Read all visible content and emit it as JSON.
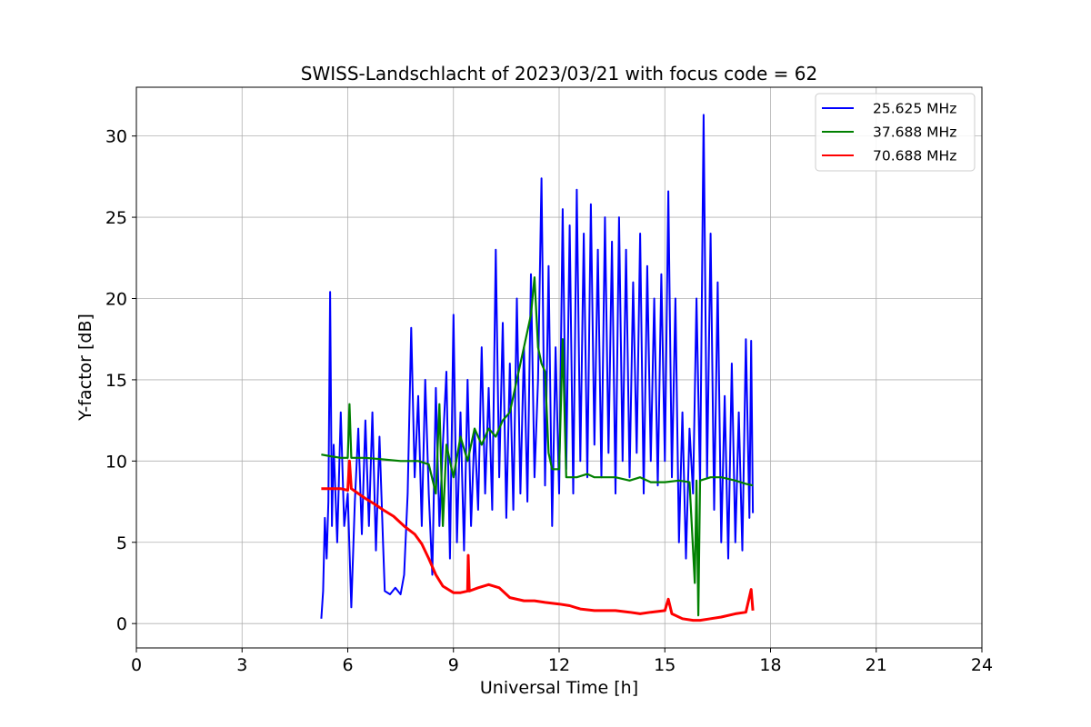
{
  "chart_data": {
    "type": "line",
    "title": "SWISS-Landschlacht of 2023/03/21 with focus code = 62",
    "xlabel": "Universal Time [h]",
    "ylabel": "Y-factor [dB]",
    "xlim": [
      0,
      24
    ],
    "ylim": [
      -1.5,
      33
    ],
    "xticks": [
      0,
      3,
      6,
      9,
      12,
      15,
      18,
      21,
      24
    ],
    "yticks": [
      0,
      5,
      10,
      15,
      20,
      25,
      30
    ],
    "grid": true,
    "legend_position": "top-right",
    "series": [
      {
        "name": "25.625 MHz",
        "color": "#0000ff",
        "points": [
          [
            5.25,
            0.3
          ],
          [
            5.3,
            2.0
          ],
          [
            5.35,
            6.5
          ],
          [
            5.4,
            4.0
          ],
          [
            5.45,
            7.5
          ],
          [
            5.5,
            20.4
          ],
          [
            5.55,
            6.0
          ],
          [
            5.6,
            11.0
          ],
          [
            5.7,
            5.0
          ],
          [
            5.8,
            13.0
          ],
          [
            5.9,
            6.0
          ],
          [
            6.0,
            8.0
          ],
          [
            6.1,
            1.0
          ],
          [
            6.2,
            7.5
          ],
          [
            6.3,
            12.0
          ],
          [
            6.4,
            5.5
          ],
          [
            6.5,
            12.5
          ],
          [
            6.6,
            6.0
          ],
          [
            6.7,
            13.0
          ],
          [
            6.8,
            4.5
          ],
          [
            6.9,
            11.5
          ],
          [
            7.0,
            5.0
          ],
          [
            7.05,
            2.0
          ],
          [
            7.2,
            1.8
          ],
          [
            7.35,
            2.2
          ],
          [
            7.5,
            1.8
          ],
          [
            7.6,
            3.0
          ],
          [
            7.7,
            8.0
          ],
          [
            7.8,
            18.2
          ],
          [
            7.9,
            9.0
          ],
          [
            8.0,
            14.0
          ],
          [
            8.1,
            6.0
          ],
          [
            8.2,
            15.0
          ],
          [
            8.3,
            8.0
          ],
          [
            8.4,
            3.0
          ],
          [
            8.5,
            14.5
          ],
          [
            8.6,
            6.0
          ],
          [
            8.7,
            11.0
          ],
          [
            8.8,
            15.5
          ],
          [
            8.9,
            4.0
          ],
          [
            9.0,
            19.0
          ],
          [
            9.1,
            5.0
          ],
          [
            9.2,
            13.0
          ],
          [
            9.3,
            4.5
          ],
          [
            9.4,
            15.0
          ],
          [
            9.5,
            6.0
          ],
          [
            9.6,
            12.0
          ],
          [
            9.7,
            7.0
          ],
          [
            9.8,
            17.0
          ],
          [
            9.9,
            8.0
          ],
          [
            10.0,
            14.5
          ],
          [
            10.1,
            7.0
          ],
          [
            10.2,
            23.0
          ],
          [
            10.3,
            9.0
          ],
          [
            10.4,
            18.5
          ],
          [
            10.5,
            6.5
          ],
          [
            10.6,
            16.0
          ],
          [
            10.7,
            7.0
          ],
          [
            10.8,
            20.0
          ],
          [
            10.9,
            8.0
          ],
          [
            11.0,
            17.0
          ],
          [
            11.1,
            7.5
          ],
          [
            11.2,
            21.5
          ],
          [
            11.3,
            9.0
          ],
          [
            11.4,
            15.0
          ],
          [
            11.5,
            27.4
          ],
          [
            11.6,
            8.5
          ],
          [
            11.7,
            22.0
          ],
          [
            11.8,
            6.0
          ],
          [
            11.9,
            17.0
          ],
          [
            12.0,
            8.0
          ],
          [
            12.1,
            25.5
          ],
          [
            12.2,
            9.5
          ],
          [
            12.3,
            24.5
          ],
          [
            12.4,
            8.0
          ],
          [
            12.5,
            26.7
          ],
          [
            12.6,
            10.0
          ],
          [
            12.7,
            24.0
          ],
          [
            12.8,
            9.0
          ],
          [
            12.9,
            25.8
          ],
          [
            13.0,
            11.0
          ],
          [
            13.1,
            23.0
          ],
          [
            13.2,
            9.0
          ],
          [
            13.3,
            25.0
          ],
          [
            13.4,
            10.5
          ],
          [
            13.5,
            23.5
          ],
          [
            13.6,
            8.0
          ],
          [
            13.7,
            25.0
          ],
          [
            13.8,
            10.0
          ],
          [
            13.9,
            23.0
          ],
          [
            14.0,
            9.0
          ],
          [
            14.1,
            21.0
          ],
          [
            14.2,
            10.5
          ],
          [
            14.3,
            24.0
          ],
          [
            14.4,
            8.0
          ],
          [
            14.5,
            22.0
          ],
          [
            14.6,
            10.0
          ],
          [
            14.7,
            20.0
          ],
          [
            14.8,
            8.5
          ],
          [
            14.9,
            21.5
          ],
          [
            15.0,
            10.0
          ],
          [
            15.1,
            26.6
          ],
          [
            15.2,
            9.0
          ],
          [
            15.3,
            20.0
          ],
          [
            15.4,
            5.0
          ],
          [
            15.5,
            13.0
          ],
          [
            15.6,
            4.0
          ],
          [
            15.7,
            12.0
          ],
          [
            15.8,
            8.0
          ],
          [
            15.9,
            20.0
          ],
          [
            16.0,
            8.5
          ],
          [
            16.1,
            31.3
          ],
          [
            16.2,
            9.0
          ],
          [
            16.3,
            24.0
          ],
          [
            16.4,
            7.0
          ],
          [
            16.5,
            21.0
          ],
          [
            16.6,
            5.0
          ],
          [
            16.7,
            14.0
          ],
          [
            16.8,
            4.0
          ],
          [
            16.9,
            16.0
          ],
          [
            17.0,
            5.0
          ],
          [
            17.1,
            13.0
          ],
          [
            17.2,
            4.5
          ],
          [
            17.3,
            17.5
          ],
          [
            17.4,
            6.5
          ],
          [
            17.45,
            17.4
          ],
          [
            17.5,
            6.8
          ]
        ]
      },
      {
        "name": "37.688 MHz",
        "color": "#008000",
        "points": [
          [
            5.25,
            10.4
          ],
          [
            5.5,
            10.3
          ],
          [
            5.8,
            10.2
          ],
          [
            6.0,
            10.2
          ],
          [
            6.05,
            13.5
          ],
          [
            6.1,
            10.2
          ],
          [
            6.5,
            10.2
          ],
          [
            7.0,
            10.1
          ],
          [
            7.5,
            10.0
          ],
          [
            8.0,
            10.0
          ],
          [
            8.3,
            9.8
          ],
          [
            8.5,
            8.0
          ],
          [
            8.6,
            13.5
          ],
          [
            8.7,
            6.0
          ],
          [
            8.8,
            11.0
          ],
          [
            9.0,
            9.0
          ],
          [
            9.2,
            11.5
          ],
          [
            9.4,
            10.0
          ],
          [
            9.6,
            12.0
          ],
          [
            9.8,
            11.0
          ],
          [
            10.0,
            12.0
          ],
          [
            10.2,
            11.5
          ],
          [
            10.4,
            12.5
          ],
          [
            10.6,
            13.0
          ],
          [
            10.8,
            15.0
          ],
          [
            11.0,
            17.0
          ],
          [
            11.2,
            19.0
          ],
          [
            11.3,
            21.3
          ],
          [
            11.4,
            17.0
          ],
          [
            11.5,
            16.0
          ],
          [
            11.6,
            15.5
          ],
          [
            11.7,
            10.5
          ],
          [
            11.8,
            9.5
          ],
          [
            12.0,
            9.5
          ],
          [
            12.1,
            17.5
          ],
          [
            12.2,
            9.0
          ],
          [
            12.5,
            9.0
          ],
          [
            12.8,
            9.2
          ],
          [
            13.0,
            9.0
          ],
          [
            13.3,
            9.0
          ],
          [
            13.6,
            9.0
          ],
          [
            14.0,
            8.8
          ],
          [
            14.3,
            9.0
          ],
          [
            14.6,
            8.7
          ],
          [
            15.0,
            8.7
          ],
          [
            15.4,
            8.8
          ],
          [
            15.7,
            8.7
          ],
          [
            15.85,
            2.5
          ],
          [
            15.9,
            8.8
          ],
          [
            15.95,
            0.5
          ],
          [
            16.0,
            8.8
          ],
          [
            16.3,
            9.0
          ],
          [
            16.6,
            9.0
          ],
          [
            17.0,
            8.8
          ],
          [
            17.3,
            8.6
          ],
          [
            17.5,
            8.5
          ]
        ]
      },
      {
        "name": "70.688 MHz",
        "color": "#ff0000",
        "points": [
          [
            5.25,
            8.3
          ],
          [
            5.5,
            8.3
          ],
          [
            5.8,
            8.3
          ],
          [
            6.0,
            8.2
          ],
          [
            6.05,
            10.0
          ],
          [
            6.1,
            8.3
          ],
          [
            6.3,
            8.0
          ],
          [
            6.5,
            7.7
          ],
          [
            6.8,
            7.3
          ],
          [
            7.0,
            7.0
          ],
          [
            7.3,
            6.6
          ],
          [
            7.6,
            6.0
          ],
          [
            7.9,
            5.5
          ],
          [
            8.1,
            4.9
          ],
          [
            8.3,
            4.0
          ],
          [
            8.5,
            3.0
          ],
          [
            8.7,
            2.3
          ],
          [
            9.0,
            1.9
          ],
          [
            9.2,
            1.9
          ],
          [
            9.4,
            2.0
          ],
          [
            9.42,
            4.2
          ],
          [
            9.45,
            2.0
          ],
          [
            9.7,
            2.2
          ],
          [
            10.0,
            2.4
          ],
          [
            10.3,
            2.2
          ],
          [
            10.6,
            1.6
          ],
          [
            11.0,
            1.4
          ],
          [
            11.3,
            1.4
          ],
          [
            11.6,
            1.3
          ],
          [
            12.0,
            1.2
          ],
          [
            12.3,
            1.1
          ],
          [
            12.6,
            0.9
          ],
          [
            13.0,
            0.8
          ],
          [
            13.3,
            0.8
          ],
          [
            13.6,
            0.8
          ],
          [
            14.0,
            0.7
          ],
          [
            14.3,
            0.6
          ],
          [
            14.6,
            0.7
          ],
          [
            15.0,
            0.8
          ],
          [
            15.1,
            1.5
          ],
          [
            15.2,
            0.6
          ],
          [
            15.5,
            0.3
          ],
          [
            15.8,
            0.2
          ],
          [
            16.0,
            0.2
          ],
          [
            16.3,
            0.3
          ],
          [
            16.6,
            0.4
          ],
          [
            17.0,
            0.6
          ],
          [
            17.3,
            0.7
          ],
          [
            17.45,
            2.1
          ],
          [
            17.5,
            0.8
          ]
        ]
      }
    ]
  }
}
